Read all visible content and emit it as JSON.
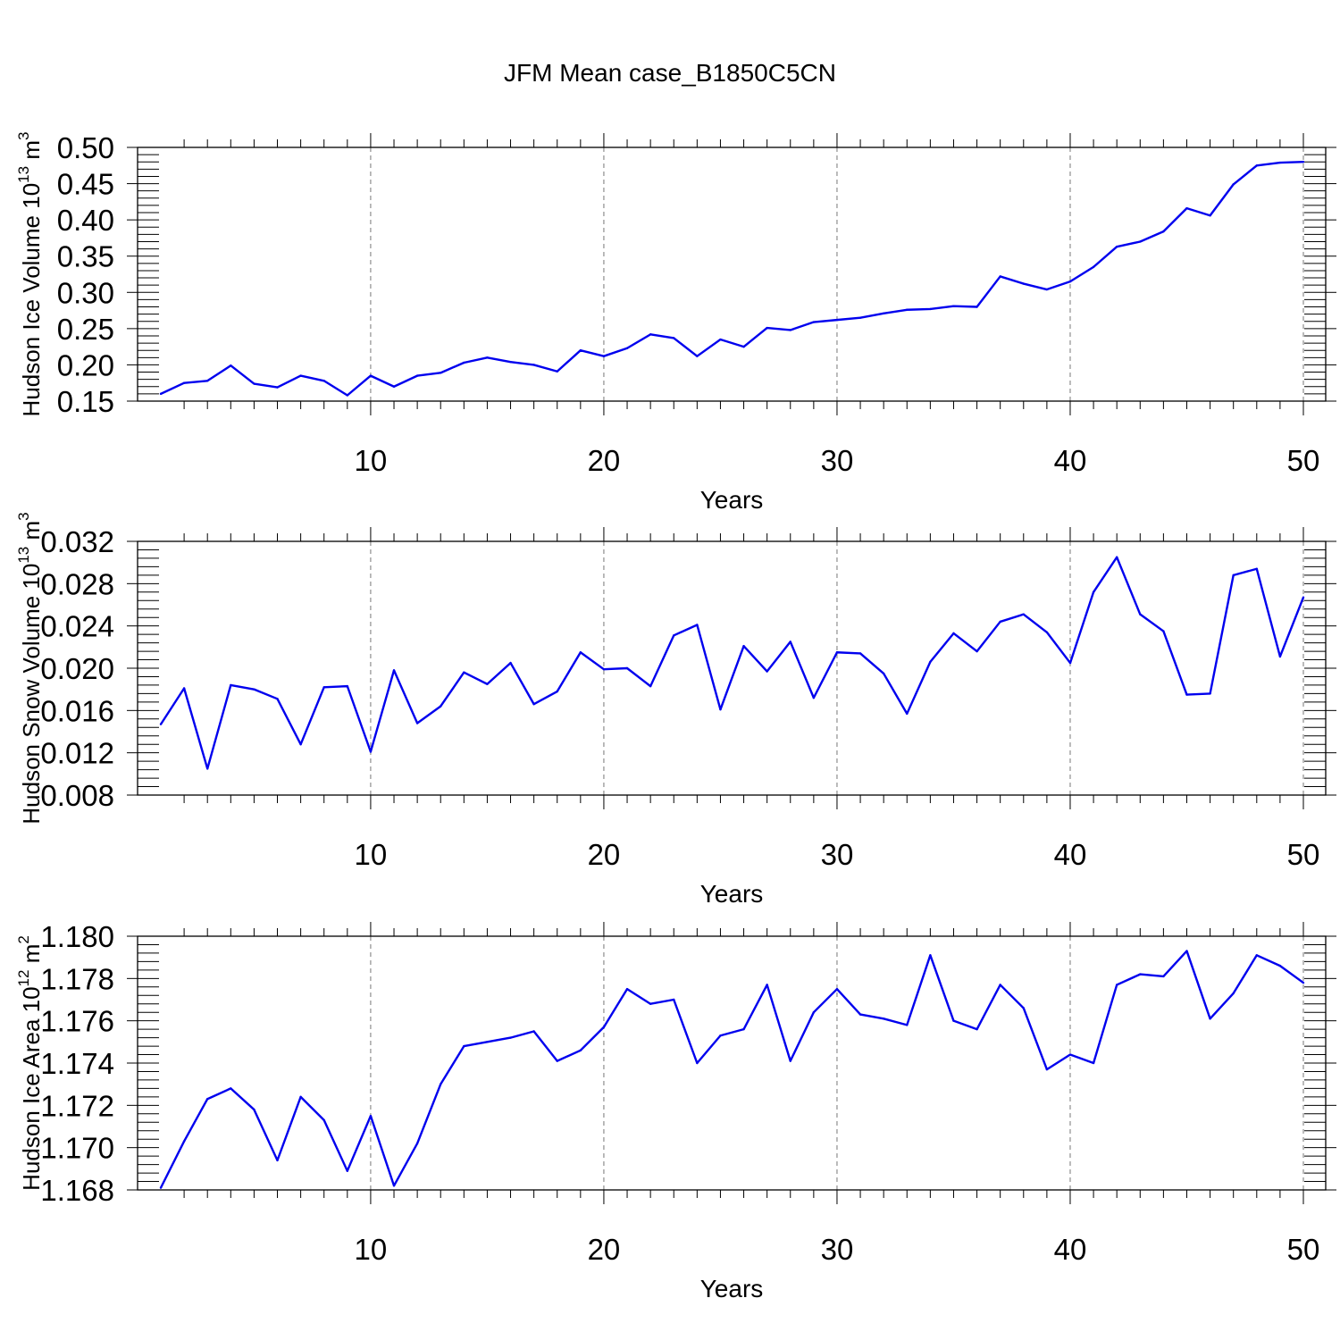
{
  "title": "JFM Mean case_B1850C5CN",
  "chart_data": [
    {
      "type": "line",
      "ylabel": "Hudson Ice Volume 10",
      "ylabel_exp": "13",
      "ylabel_unit": " m",
      "ylabel_unit_exp": "3",
      "xlabel": "Years",
      "xlim": [
        1,
        50
      ],
      "ylim": [
        0.15,
        0.5
      ],
      "xticks": [
        10,
        20,
        30,
        40,
        50
      ],
      "xtick_labels": [
        "10",
        "20",
        "30",
        "40",
        "50"
      ],
      "yticks": [
        0.15,
        0.2,
        0.25,
        0.3,
        0.35,
        0.4,
        0.45,
        0.5
      ],
      "ytick_labels": [
        "0.15",
        "0.20",
        "0.25",
        "0.30",
        "0.35",
        "0.40",
        "0.45",
        "0.50"
      ],
      "y_minor_step": 0.01,
      "grid": "vertical dashed at major x ticks",
      "color": "#0000ee",
      "series": [
        {
          "name": "Hudson Ice Volume",
          "x_start": 1,
          "values": [
            0.16,
            0.175,
            0.178,
            0.199,
            0.174,
            0.169,
            0.185,
            0.178,
            0.158,
            0.185,
            0.17,
            0.185,
            0.189,
            0.203,
            0.21,
            0.204,
            0.2,
            0.191,
            0.22,
            0.212,
            0.223,
            0.242,
            0.237,
            0.212,
            0.235,
            0.225,
            0.251,
            0.248,
            0.259,
            0.262,
            0.265,
            0.271,
            0.276,
            0.277,
            0.281,
            0.28,
            0.322,
            0.312,
            0.304,
            0.315,
            0.335,
            0.363,
            0.37,
            0.384,
            0.416,
            0.406,
            0.449,
            0.475,
            0.479,
            0.48
          ]
        }
      ]
    },
    {
      "type": "line",
      "ylabel": "Hudson Snow Volume 10",
      "ylabel_exp": "13",
      "ylabel_unit": " m",
      "ylabel_unit_exp": "3",
      "xlabel": "Years",
      "xlim": [
        1,
        50
      ],
      "ylim": [
        0.008,
        0.032
      ],
      "xticks": [
        10,
        20,
        30,
        40,
        50
      ],
      "xtick_labels": [
        "10",
        "20",
        "30",
        "40",
        "50"
      ],
      "yticks": [
        0.008,
        0.012,
        0.016,
        0.02,
        0.024,
        0.028,
        0.032
      ],
      "ytick_labels": [
        "0.008",
        "0.012",
        "0.016",
        "0.020",
        "0.024",
        "0.028",
        "0.032"
      ],
      "y_minor_step": 0.0008,
      "grid": "vertical dashed at major x ticks",
      "color": "#0000ee",
      "series": [
        {
          "name": "Hudson Snow Volume",
          "x_start": 1,
          "values": [
            0.0147,
            0.0181,
            0.0105,
            0.0184,
            0.018,
            0.0171,
            0.0128,
            0.0182,
            0.0183,
            0.0121,
            0.0198,
            0.0148,
            0.0164,
            0.0196,
            0.0185,
            0.0205,
            0.0166,
            0.0178,
            0.0215,
            0.0199,
            0.02,
            0.0183,
            0.0231,
            0.0241,
            0.0161,
            0.0221,
            0.0197,
            0.0225,
            0.0172,
            0.0215,
            0.0214,
            0.0195,
            0.0157,
            0.0206,
            0.0233,
            0.0216,
            0.0244,
            0.0251,
            0.0234,
            0.0205,
            0.0272,
            0.0305,
            0.0251,
            0.0235,
            0.0175,
            0.0176,
            0.0288,
            0.0294,
            0.0211,
            0.0267
          ]
        }
      ]
    },
    {
      "type": "line",
      "ylabel": "Hudson Ice Area 10",
      "ylabel_exp": "12",
      "ylabel_unit": " m",
      "ylabel_unit_exp": "2",
      "xlabel": "Years",
      "xlim": [
        1,
        50
      ],
      "ylim": [
        1.168,
        1.18
      ],
      "xticks": [
        10,
        20,
        30,
        40,
        50
      ],
      "xtick_labels": [
        "10",
        "20",
        "30",
        "40",
        "50"
      ],
      "yticks": [
        1.168,
        1.17,
        1.172,
        1.174,
        1.176,
        1.178,
        1.18
      ],
      "ytick_labels": [
        "1.168",
        "1.170",
        "1.172",
        "1.174",
        "1.176",
        "1.178",
        "1.180"
      ],
      "y_minor_step": 0.0004,
      "grid": "vertical dashed at major x ticks",
      "color": "#0000ee",
      "series": [
        {
          "name": "Hudson Ice Area",
          "x_start": 1,
          "values": [
            1.1681,
            1.1703,
            1.1723,
            1.1728,
            1.1718,
            1.1694,
            1.1724,
            1.1713,
            1.1689,
            1.1715,
            1.1682,
            1.1702,
            1.173,
            1.1748,
            1.175,
            1.1752,
            1.1755,
            1.1741,
            1.1746,
            1.1757,
            1.1775,
            1.1768,
            1.177,
            1.174,
            1.1753,
            1.1756,
            1.1777,
            1.1741,
            1.1764,
            1.1775,
            1.1763,
            1.1761,
            1.1758,
            1.1791,
            1.176,
            1.1756,
            1.1777,
            1.1766,
            1.1737,
            1.1744,
            1.174,
            1.1777,
            1.1782,
            1.1781,
            1.1793,
            1.1761,
            1.1773,
            1.1791,
            1.1786,
            1.1778
          ]
        }
      ]
    }
  ]
}
